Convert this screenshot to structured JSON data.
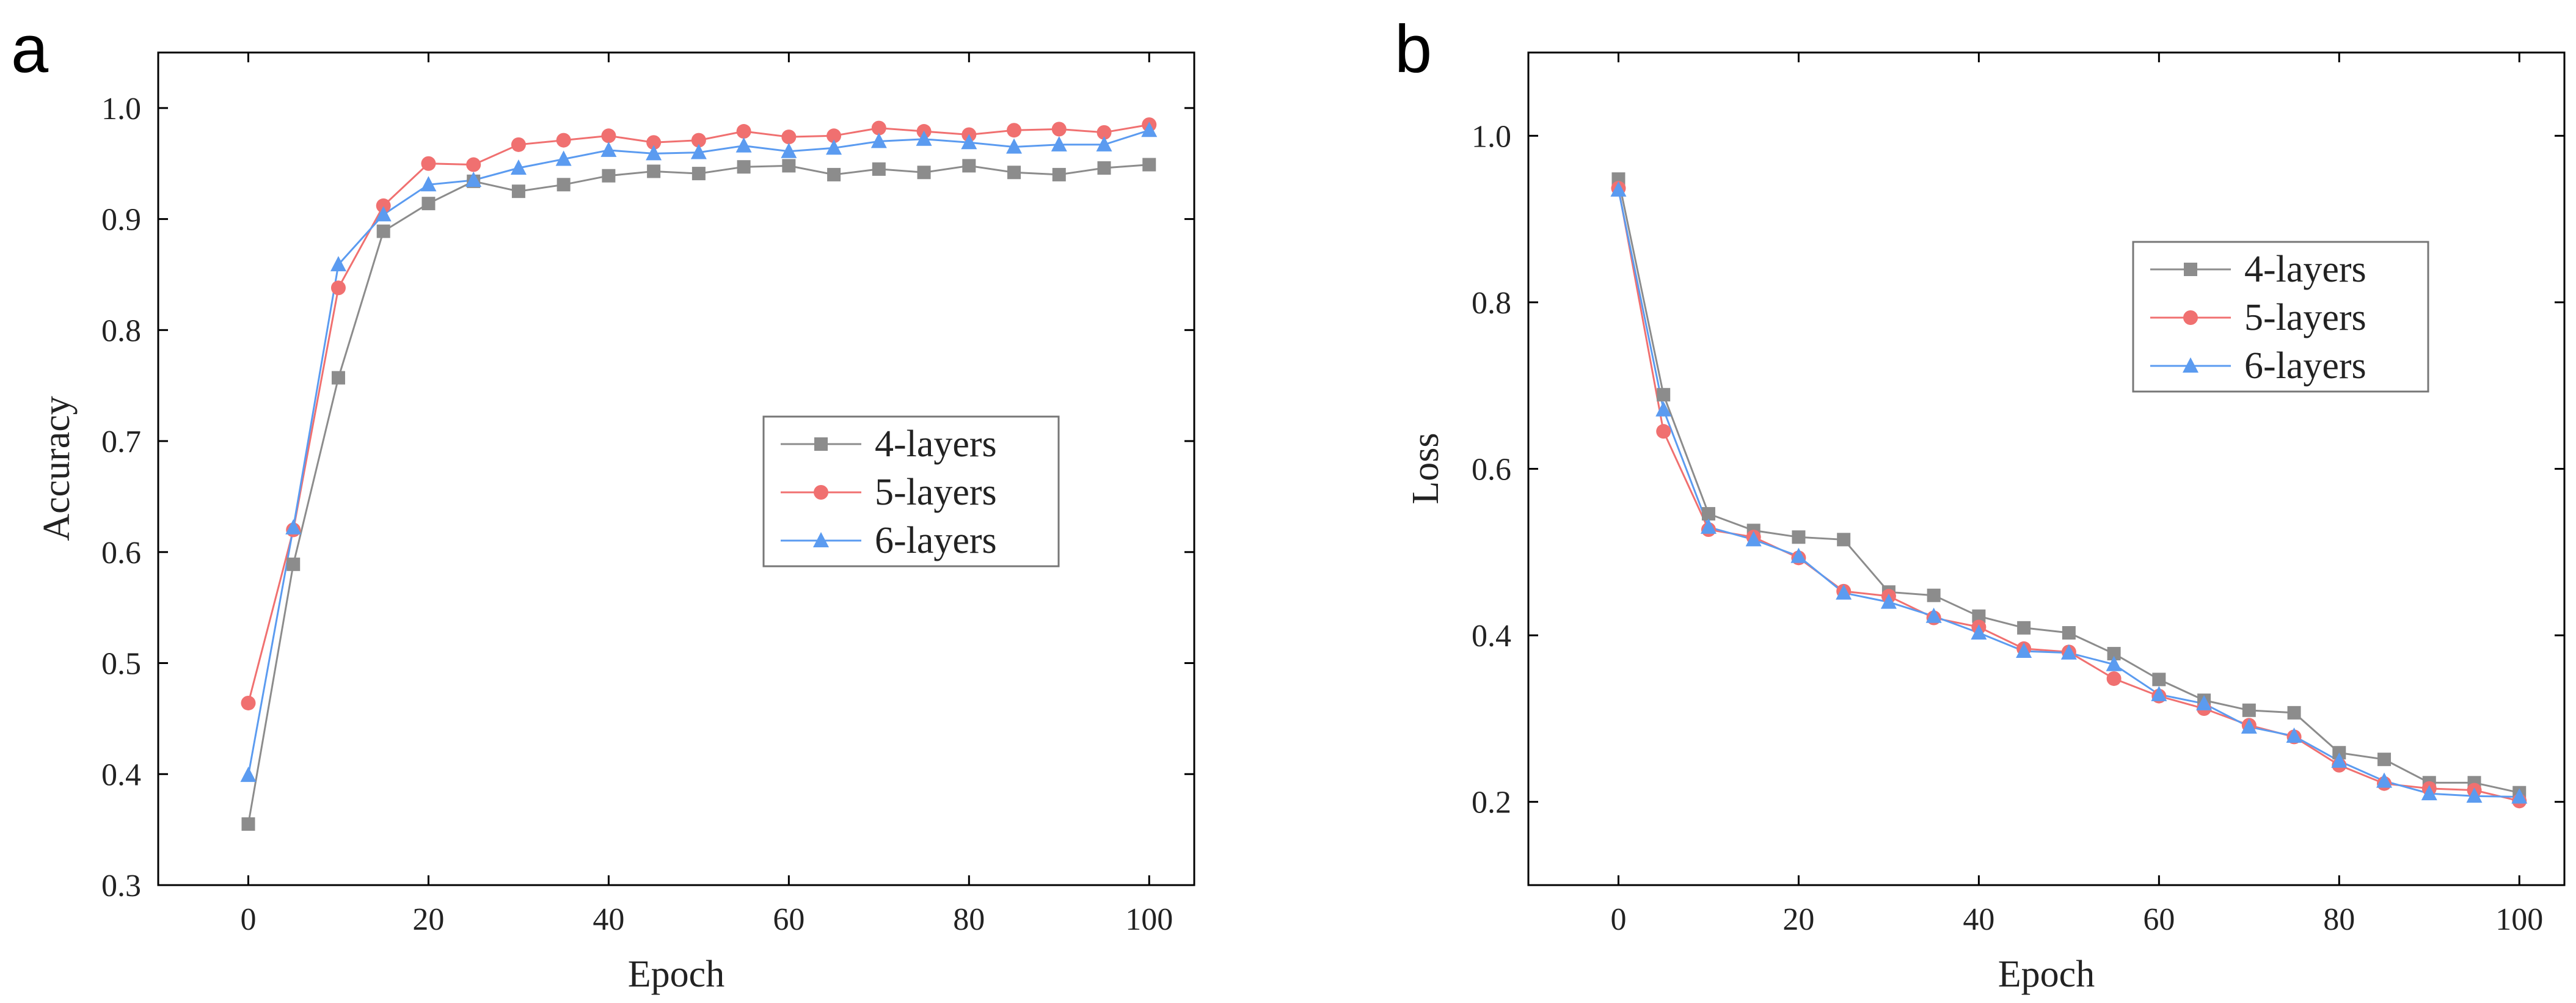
{
  "chart_data": [
    {
      "panel_label": "a",
      "type": "line",
      "title": "",
      "xlabel": "Epoch",
      "ylabel": "Accuracy",
      "xlim": [
        -10,
        105
      ],
      "ylim": [
        0.3,
        1.05
      ],
      "xticks": [
        0,
        20,
        40,
        60,
        80,
        100
      ],
      "xtick_labels": [
        "0",
        "20",
        "40",
        "60",
        "80",
        "100"
      ],
      "yticks": [
        0.3,
        0.4,
        0.5,
        0.6,
        0.7,
        0.8,
        0.9,
        1.0
      ],
      "ytick_labels": [
        "0.3",
        "0.4",
        "0.5",
        "0.6",
        "0.7",
        "0.8",
        "0.9",
        "1.0"
      ],
      "grid": false,
      "legend_position": "center-right",
      "x": [
        0,
        5,
        10,
        15,
        20,
        25,
        30,
        35,
        40,
        45,
        50,
        55,
        60,
        65,
        70,
        75,
        80,
        85,
        90,
        95,
        100
      ],
      "series": [
        {
          "name": "4-layers",
          "color": "#8c8c8c",
          "marker": "square",
          "values": [
            0.355,
            0.589,
            0.757,
            0.889,
            0.914,
            0.934,
            0.925,
            0.931,
            0.939,
            0.943,
            0.941,
            0.947,
            0.948,
            0.94,
            0.945,
            0.942,
            0.948,
            0.942,
            0.94,
            0.946,
            0.949
          ]
        },
        {
          "name": "5-layers",
          "color": "#f07070",
          "marker": "circle",
          "values": [
            0.464,
            0.62,
            0.838,
            0.912,
            0.95,
            0.949,
            0.967,
            0.971,
            0.975,
            0.969,
            0.971,
            0.979,
            0.974,
            0.975,
            0.982,
            0.979,
            0.976,
            0.98,
            0.981,
            0.978,
            0.985
          ]
        },
        {
          "name": "6-layers",
          "color": "#5b9bf0",
          "marker": "triangle",
          "values": [
            0.399,
            0.622,
            0.859,
            0.904,
            0.931,
            0.935,
            0.946,
            0.954,
            0.962,
            0.959,
            0.96,
            0.966,
            0.961,
            0.964,
            0.97,
            0.972,
            0.969,
            0.965,
            0.967,
            0.967,
            0.98
          ]
        }
      ]
    },
    {
      "panel_label": "b",
      "type": "line",
      "title": "",
      "xlabel": "Epoch",
      "ylabel": "Loss",
      "xlim": [
        -10,
        105
      ],
      "ylim": [
        0.1,
        1.1
      ],
      "xticks": [
        0,
        20,
        40,
        60,
        80,
        100
      ],
      "xtick_labels": [
        "0",
        "20",
        "40",
        "60",
        "80",
        "100"
      ],
      "yticks": [
        0.2,
        0.4,
        0.6,
        0.8,
        1.0
      ],
      "ytick_labels": [
        "0.2",
        "0.4",
        "0.6",
        "0.8",
        "1.0"
      ],
      "grid": false,
      "legend_position": "top-right",
      "x": [
        0,
        5,
        10,
        15,
        20,
        25,
        30,
        35,
        40,
        45,
        50,
        55,
        60,
        65,
        70,
        75,
        80,
        85,
        90,
        95,
        100
      ],
      "series": [
        {
          "name": "4-layers",
          "color": "#8c8c8c",
          "marker": "square",
          "values": [
            0.948,
            0.689,
            0.546,
            0.526,
            0.518,
            0.515,
            0.452,
            0.448,
            0.423,
            0.409,
            0.403,
            0.378,
            0.347,
            0.322,
            0.31,
            0.307,
            0.259,
            0.251,
            0.223,
            0.223,
            0.211
          ]
        },
        {
          "name": "5-layers",
          "color": "#f07070",
          "marker": "circle",
          "values": [
            0.937,
            0.645,
            0.527,
            0.518,
            0.493,
            0.453,
            0.447,
            0.421,
            0.41,
            0.384,
            0.38,
            0.348,
            0.327,
            0.312,
            0.292,
            0.278,
            0.244,
            0.222,
            0.216,
            0.214,
            0.201
          ]
        },
        {
          "name": "6-layers",
          "color": "#5b9bf0",
          "marker": "triangle",
          "values": [
            0.935,
            0.671,
            0.53,
            0.515,
            0.495,
            0.451,
            0.44,
            0.423,
            0.403,
            0.381,
            0.379,
            0.365,
            0.329,
            0.318,
            0.29,
            0.279,
            0.249,
            0.225,
            0.21,
            0.207,
            0.206
          ]
        }
      ]
    }
  ]
}
